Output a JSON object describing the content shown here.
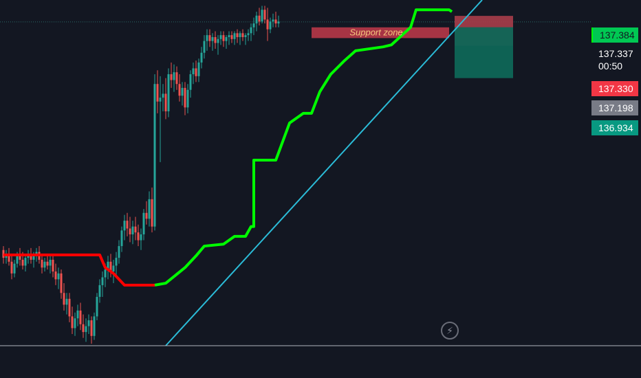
{
  "colors": {
    "background": "#131722",
    "bull": "#26a69a",
    "bear": "#ef5350",
    "supertrend_up": "#00ff00",
    "supertrend_down": "#ff0000",
    "trendline": "#2bbcd8",
    "support_zone": "#c23a4a",
    "support_label": "#f7c67c",
    "stop_zone": "#a83d4a",
    "target_zone": "#0e6657",
    "tag_green": "#00c853",
    "tag_current": "#089981",
    "tag_red": "#f23645",
    "tag_gray": "#787b86"
  },
  "annotation": {
    "support_zone_label": "Support zone"
  },
  "price_axis": {
    "tags": [
      {
        "id": "high",
        "value": "137.384"
      },
      {
        "id": "current",
        "value": "137.337",
        "countdown": "00:50"
      },
      {
        "id": "stop",
        "value": "137.330"
      },
      {
        "id": "mid",
        "value": "137.198"
      },
      {
        "id": "target",
        "value": "136.934"
      }
    ]
  },
  "toolbar": {
    "flash_icon": "lightning-icon"
  },
  "chart_data": {
    "type": "candlestick",
    "yrange": [
      135.68,
      137.45
    ],
    "candles": [
      [
        136.17,
        136.19,
        136.1,
        136.13
      ],
      [
        136.13,
        136.17,
        136.1,
        136.15
      ],
      [
        136.15,
        136.18,
        136.09,
        136.11
      ],
      [
        136.11,
        136.14,
        136.02,
        136.05
      ],
      [
        136.05,
        136.12,
        136.03,
        136.1
      ],
      [
        136.1,
        136.16,
        136.08,
        136.14
      ],
      [
        136.14,
        136.18,
        136.09,
        136.12
      ],
      [
        136.12,
        136.16,
        136.07,
        136.09
      ],
      [
        136.09,
        136.14,
        136.06,
        136.13
      ],
      [
        136.13,
        136.17,
        136.1,
        136.15
      ],
      [
        136.15,
        136.18,
        136.1,
        136.12
      ],
      [
        136.12,
        136.16,
        136.08,
        136.14
      ],
      [
        136.14,
        136.18,
        136.11,
        136.16
      ],
      [
        136.16,
        136.19,
        136.1,
        136.12
      ],
      [
        136.12,
        136.15,
        136.05,
        136.08
      ],
      [
        136.08,
        136.13,
        136.06,
        136.11
      ],
      [
        136.11,
        136.15,
        136.07,
        136.09
      ],
      [
        136.09,
        136.14,
        136.05,
        136.12
      ],
      [
        136.12,
        136.15,
        136.03,
        136.06
      ],
      [
        136.06,
        136.1,
        135.99,
        136.02
      ],
      [
        136.02,
        136.08,
        135.97,
        136.05
      ],
      [
        136.05,
        136.07,
        135.92,
        135.95
      ],
      [
        135.95,
        136.0,
        135.86,
        135.89
      ],
      [
        135.89,
        135.95,
        135.84,
        135.92
      ],
      [
        135.92,
        135.95,
        135.8,
        135.83
      ],
      [
        135.83,
        135.88,
        135.74,
        135.77
      ],
      [
        135.77,
        135.85,
        135.73,
        135.82
      ],
      [
        135.82,
        135.89,
        135.78,
        135.86
      ],
      [
        135.86,
        135.9,
        135.76,
        135.79
      ],
      [
        135.79,
        135.84,
        135.72,
        135.75
      ],
      [
        135.75,
        135.82,
        135.7,
        135.78
      ],
      [
        135.78,
        135.84,
        135.74,
        135.81
      ],
      [
        135.81,
        135.83,
        135.69,
        135.73
      ],
      [
        135.73,
        135.85,
        135.71,
        135.83
      ],
      [
        135.83,
        135.95,
        135.81,
        135.93
      ],
      [
        135.93,
        136.02,
        135.9,
        135.99
      ],
      [
        135.99,
        136.06,
        135.93,
        136.03
      ],
      [
        136.03,
        136.1,
        135.98,
        136.07
      ],
      [
        136.07,
        136.14,
        136.02,
        136.11
      ],
      [
        136.11,
        136.15,
        136.03,
        136.06
      ],
      [
        136.06,
        136.12,
        136.0,
        136.09
      ],
      [
        136.09,
        136.16,
        136.04,
        136.13
      ],
      [
        136.13,
        136.22,
        136.1,
        136.19
      ],
      [
        136.19,
        136.29,
        136.16,
        136.27
      ],
      [
        136.27,
        136.35,
        136.22,
        136.32
      ],
      [
        136.32,
        136.36,
        136.24,
        136.28
      ],
      [
        136.28,
        136.34,
        136.21,
        136.25
      ],
      [
        136.25,
        136.32,
        136.2,
        136.29
      ],
      [
        136.29,
        136.34,
        136.22,
        136.26
      ],
      [
        136.26,
        136.3,
        136.19,
        136.22
      ],
      [
        136.22,
        136.28,
        136.17,
        136.25
      ],
      [
        136.25,
        136.38,
        136.22,
        136.36
      ],
      [
        136.36,
        136.42,
        136.3,
        136.33
      ],
      [
        136.33,
        136.47,
        136.29,
        136.43
      ],
      [
        136.43,
        136.49,
        136.26,
        136.29
      ],
      [
        136.29,
        137.07,
        136.27,
        137.02
      ],
      [
        137.02,
        137.09,
        136.87,
        136.93
      ],
      [
        136.93,
        137.06,
        136.62,
        136.95
      ],
      [
        136.95,
        137.02,
        136.88,
        136.97
      ],
      [
        136.97,
        137.05,
        136.84,
        136.88
      ],
      [
        136.88,
        137.1,
        136.85,
        137.07
      ],
      [
        137.07,
        137.13,
        137.0,
        137.04
      ],
      [
        137.04,
        137.12,
        136.98,
        137.08
      ],
      [
        137.08,
        137.11,
        136.99,
        137.02
      ],
      [
        137.02,
        137.07,
        136.93,
        136.96
      ],
      [
        136.96,
        137.03,
        136.91,
        137.0
      ],
      [
        137.0,
        137.03,
        136.86,
        136.9
      ],
      [
        136.9,
        137.02,
        136.87,
        136.99
      ],
      [
        136.99,
        137.09,
        136.95,
        137.07
      ],
      [
        137.07,
        137.13,
        137.02,
        137.1
      ],
      [
        137.1,
        137.14,
        137.03,
        137.06
      ],
      [
        137.06,
        137.15,
        137.03,
        137.13
      ],
      [
        137.13,
        137.21,
        137.1,
        137.18
      ],
      [
        137.18,
        137.27,
        137.15,
        137.24
      ],
      [
        137.24,
        137.3,
        137.19,
        137.27
      ],
      [
        137.27,
        137.3,
        137.21,
        137.24
      ],
      [
        137.24,
        137.28,
        137.19,
        137.26
      ],
      [
        137.26,
        137.29,
        137.2,
        137.23
      ],
      [
        137.23,
        137.27,
        137.17,
        137.25
      ],
      [
        137.25,
        137.29,
        137.22,
        137.27
      ],
      [
        137.27,
        137.29,
        137.21,
        137.24
      ],
      [
        137.24,
        137.27,
        137.2,
        137.26
      ],
      [
        137.26,
        137.29,
        137.22,
        137.27
      ],
      [
        137.27,
        137.29,
        137.23,
        137.25
      ],
      [
        137.25,
        137.29,
        137.22,
        137.28
      ],
      [
        137.28,
        137.3,
        137.23,
        137.26
      ],
      [
        137.26,
        137.29,
        137.22,
        137.28
      ],
      [
        137.28,
        137.3,
        137.24,
        137.26
      ],
      [
        137.26,
        137.28,
        137.22,
        137.27
      ],
      [
        137.27,
        137.3,
        137.24,
        137.28
      ],
      [
        137.28,
        137.33,
        137.24,
        137.31
      ],
      [
        137.31,
        137.36,
        137.27,
        137.33
      ],
      [
        137.33,
        137.39,
        137.29,
        137.37
      ],
      [
        137.37,
        137.41,
        137.32,
        137.34
      ],
      [
        137.34,
        137.42,
        137.33,
        137.4
      ],
      [
        137.4,
        137.42,
        137.33,
        137.35
      ],
      [
        137.35,
        137.41,
        137.24,
        137.3
      ],
      [
        137.3,
        137.36,
        137.28,
        137.34
      ],
      [
        137.34,
        137.38,
        137.31,
        137.35
      ],
      [
        137.35,
        137.39,
        137.31,
        137.33
      ],
      [
        137.33,
        137.37,
        137.31,
        137.34
      ]
    ],
    "supertrend": {
      "down_segment": [
        [
          0,
          136.145
        ],
        [
          35,
          136.145
        ],
        [
          37,
          136.08
        ],
        [
          40,
          136.05
        ],
        [
          44,
          135.99
        ],
        [
          55,
          135.99
        ]
      ],
      "up_segment": [
        [
          55,
          135.99
        ],
        [
          59,
          136.0
        ],
        [
          66,
          136.08
        ],
        [
          70,
          136.14
        ],
        [
          73,
          136.19
        ],
        [
          80,
          136.2
        ],
        [
          84,
          136.24
        ],
        [
          88,
          136.24
        ],
        [
          90,
          136.29
        ],
        [
          91,
          136.29
        ],
        [
          91,
          136.63
        ],
        [
          99,
          136.63
        ],
        [
          104,
          136.82
        ],
        [
          109,
          136.87
        ],
        [
          112,
          136.87
        ],
        [
          115,
          136.98
        ],
        [
          119,
          137.07
        ],
        [
          124,
          137.14
        ],
        [
          128,
          137.19
        ],
        [
          138,
          137.21
        ],
        [
          141,
          137.22
        ],
        [
          148,
          137.31
        ],
        [
          150,
          137.4
        ],
        [
          162,
          137.4
        ],
        [
          163,
          137.39
        ]
      ]
    },
    "trendline": [
      [
        59,
        135.68
      ],
      [
        174,
        137.45
      ]
    ],
    "zones": {
      "support": [
        137.255,
        137.31
      ],
      "stop": [
        137.3,
        137.337
      ],
      "target": [
        137.198,
        136.934
      ]
    },
    "reference_line": 137.338
  }
}
